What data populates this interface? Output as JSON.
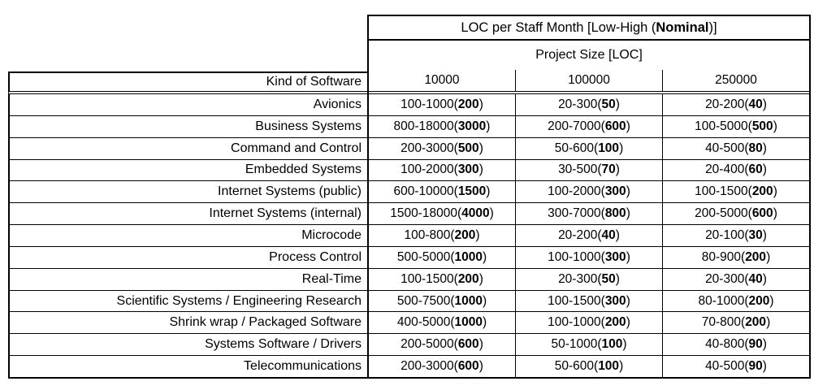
{
  "table": {
    "title": {
      "prefix": "LOC per Staff Month [Low-High (",
      "bold": "Nominal",
      "suffix": ")]"
    },
    "subtitle": "Project Size [LOC]",
    "kind_header": "Kind of Software",
    "size_headers": [
      "10000",
      "100000",
      "250000"
    ],
    "rows": [
      {
        "kind": "Avionics",
        "values": [
          {
            "range": "100-1000",
            "nominal": "200"
          },
          {
            "range": "20-300",
            "nominal": "50"
          },
          {
            "range": "20-200",
            "nominal": "40"
          }
        ]
      },
      {
        "kind": "Business Systems",
        "values": [
          {
            "range": "800-18000",
            "nominal": "3000"
          },
          {
            "range": "200-7000",
            "nominal": "600"
          },
          {
            "range": "100-5000",
            "nominal": "500"
          }
        ]
      },
      {
        "kind": "Command and Control",
        "values": [
          {
            "range": "200-3000",
            "nominal": "500"
          },
          {
            "range": "50-600",
            "nominal": "100"
          },
          {
            "range": "40-500",
            "nominal": "80"
          }
        ]
      },
      {
        "kind": "Embedded Systems",
        "values": [
          {
            "range": "100-2000",
            "nominal": "300"
          },
          {
            "range": "30-500",
            "nominal": "70"
          },
          {
            "range": "20-400",
            "nominal": "60"
          }
        ]
      },
      {
        "kind": "Internet Systems (public)",
        "values": [
          {
            "range": "600-10000",
            "nominal": "1500"
          },
          {
            "range": "100-2000",
            "nominal": "300"
          },
          {
            "range": "100-1500",
            "nominal": "200"
          }
        ]
      },
      {
        "kind": "Internet Systems (internal)",
        "values": [
          {
            "range": "1500-18000",
            "nominal": "4000"
          },
          {
            "range": "300-7000",
            "nominal": "800"
          },
          {
            "range": "200-5000",
            "nominal": "600"
          }
        ]
      },
      {
        "kind": "Microcode",
        "values": [
          {
            "range": "100-800",
            "nominal": "200"
          },
          {
            "range": "20-200",
            "nominal": "40"
          },
          {
            "range": "20-100",
            "nominal": "30"
          }
        ]
      },
      {
        "kind": "Process Control",
        "values": [
          {
            "range": "500-5000",
            "nominal": "1000"
          },
          {
            "range": "100-1000",
            "nominal": "300"
          },
          {
            "range": "80-900",
            "nominal": "200"
          }
        ]
      },
      {
        "kind": "Real-Time",
        "values": [
          {
            "range": "100-1500",
            "nominal": "200"
          },
          {
            "range": "20-300",
            "nominal": "50"
          },
          {
            "range": "20-300",
            "nominal": "40"
          }
        ]
      },
      {
        "kind": "Scientific Systems / Engineering Research",
        "values": [
          {
            "range": "500-7500",
            "nominal": "1000"
          },
          {
            "range": "100-1500",
            "nominal": "300"
          },
          {
            "range": "80-1000",
            "nominal": "200"
          }
        ]
      },
      {
        "kind": "Shrink wrap / Packaged Software",
        "values": [
          {
            "range": "400-5000",
            "nominal": "1000"
          },
          {
            "range": "100-1000",
            "nominal": "200"
          },
          {
            "range": "70-800",
            "nominal": "200"
          }
        ]
      },
      {
        "kind": "Systems Software / Drivers",
        "values": [
          {
            "range": "200-5000",
            "nominal": "600"
          },
          {
            "range": "50-1000",
            "nominal": "100"
          },
          {
            "range": "40-800",
            "nominal": "90"
          }
        ]
      },
      {
        "kind": "Telecommunications",
        "values": [
          {
            "range": "200-3000",
            "nominal": "600"
          },
          {
            "range": "50-600",
            "nominal": "100"
          },
          {
            "range": "40-500",
            "nominal": "90"
          }
        ]
      }
    ]
  },
  "colors": {
    "text": "#000000",
    "background": "#ffffff",
    "border": "#000000"
  }
}
